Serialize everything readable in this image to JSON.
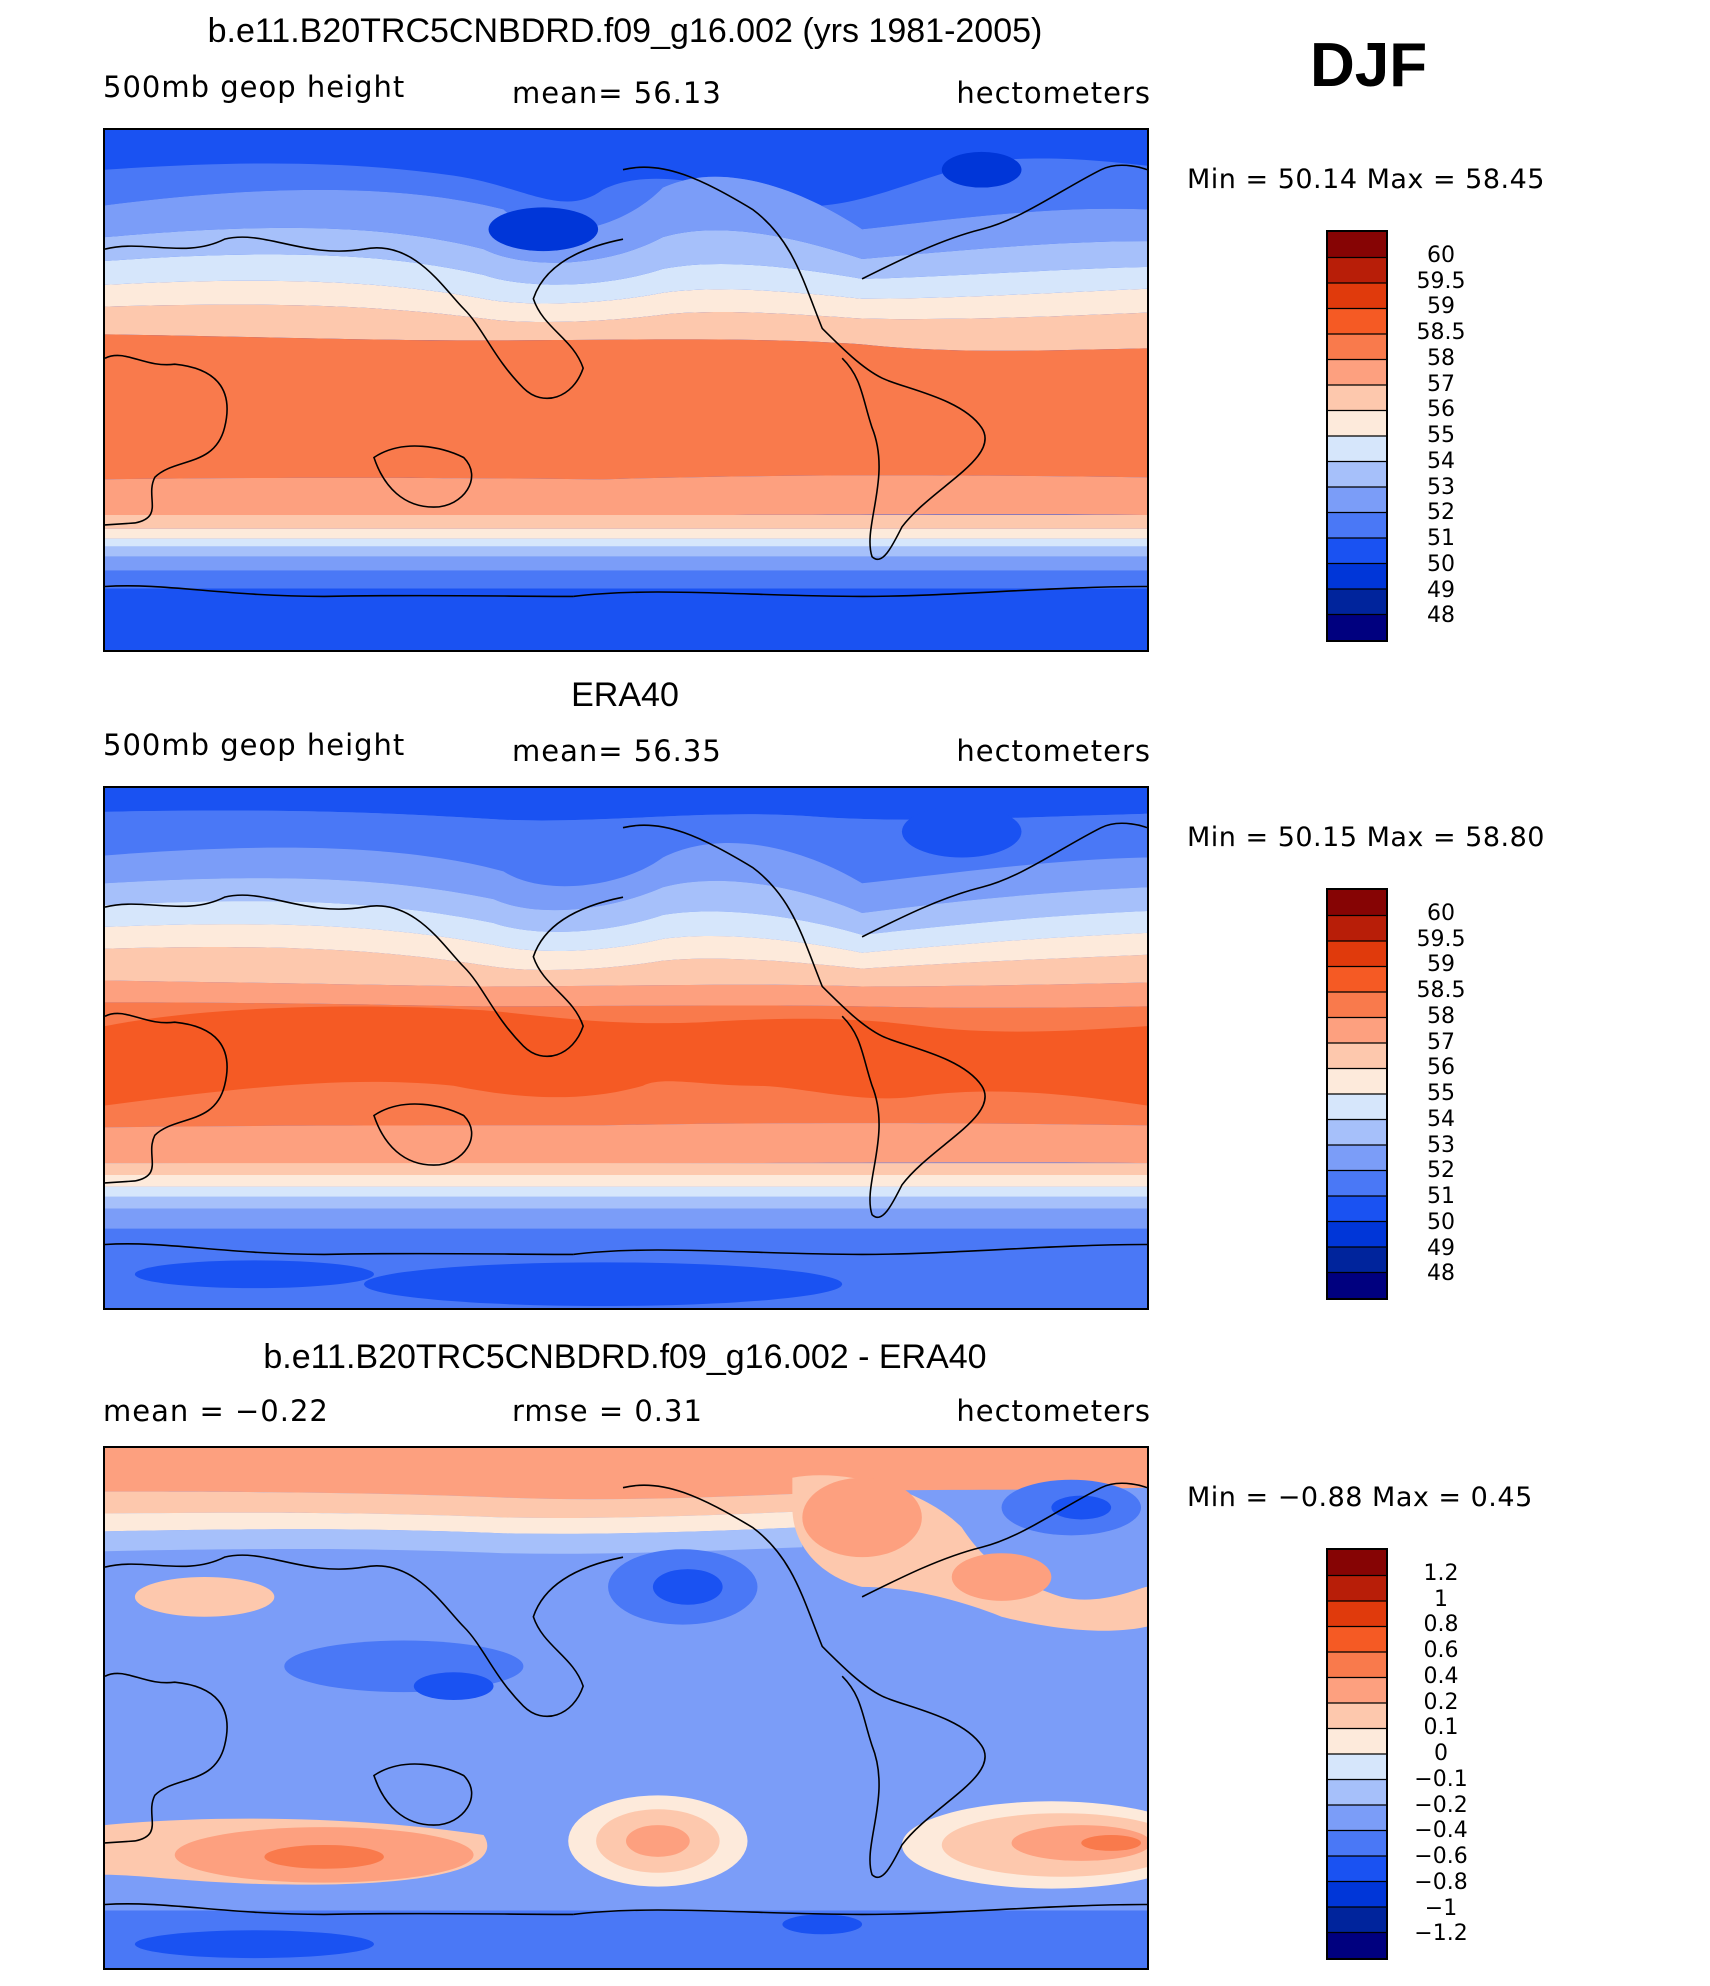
{
  "season": "DJF",
  "palette": {
    "height": [
      "#00007f",
      "#00249c",
      "#0036d8",
      "#1a52f2",
      "#4a78f6",
      "#7b9df8",
      "#a6c0fa",
      "#d6e6fb",
      "#fdeadb",
      "#fdc8ad",
      "#fda07f",
      "#f97a4c",
      "#f55a24",
      "#e03a0c",
      "#b81e08",
      "#860404"
    ],
    "diff": [
      "#00007f",
      "#00249c",
      "#0036d8",
      "#1a52f2",
      "#4a78f6",
      "#7b9df8",
      "#a6c0fa",
      "#d6e6fb",
      "#fdeadb",
      "#fdc8ad",
      "#fda07f",
      "#f97a4c",
      "#f55a24",
      "#e03a0c",
      "#b81e08",
      "#860404"
    ],
    "coast": "#000000"
  },
  "panels": [
    {
      "title": "b.e11.B20TRC5CNBDRD.f09_g16.002 (yrs 1981-2005)",
      "left_label": "500mb  geop  height",
      "center_label": "mean=   56.13",
      "right_label": "hectometers",
      "minmax": "Min  =    50.14  Max  =    58.45",
      "colorbar_labels": [
        "60",
        "59.5",
        "59",
        "58.5",
        "58",
        "57",
        "56",
        "55",
        "54",
        "53",
        "52",
        "51",
        "50",
        "49",
        "48"
      ]
    },
    {
      "title": "ERA40",
      "left_label": "500mb  geop  height",
      "center_label": "mean=   56.35",
      "right_label": "hectometers",
      "minmax": "Min  =    50.15  Max  =    58.80",
      "colorbar_labels": [
        "60",
        "59.5",
        "59",
        "58.5",
        "58",
        "57",
        "56",
        "55",
        "54",
        "53",
        "52",
        "51",
        "50",
        "49",
        "48"
      ]
    },
    {
      "title": "b.e11.B20TRC5CNBDRD.f09_g16.002 - ERA40",
      "left_label": "mean  =    −0.22",
      "center_label": "rmse  =     0.31",
      "right_label": "hectometers",
      "minmax": "Min  =   −0.88  Max  =     0.45",
      "colorbar_labels": [
        "1.2",
        "1",
        "0.8",
        "0.6",
        "0.4",
        "0.2",
        "0.1",
        "0",
        "−0.1",
        "−0.2",
        "−0.4",
        "−0.6",
        "−0.8",
        "−1",
        "−1.2"
      ]
    }
  ]
}
